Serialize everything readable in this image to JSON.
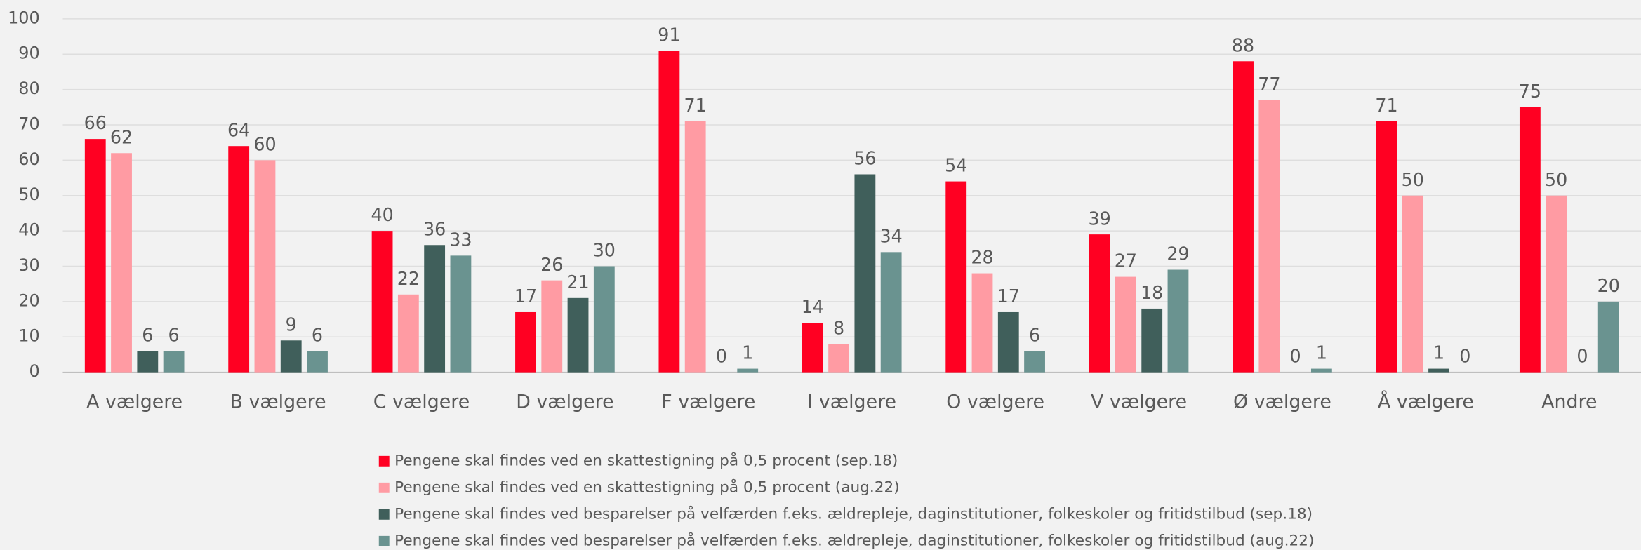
{
  "chart_data": {
    "type": "bar",
    "categories": [
      "A vælgere",
      "B vælgere",
      "C vælgere",
      "D vælgere",
      "F vælgere",
      "I vælgere",
      "O vælgere",
      "V vælgere",
      "Ø vælgere",
      "Å vælgere",
      "Andre"
    ],
    "series": [
      {
        "name": "Pengene skal findes ved en skattestigning på 0,5 procent (sep.18)",
        "color": "#ff0022",
        "values": [
          66,
          64,
          40,
          17,
          91,
          14,
          54,
          39,
          88,
          71,
          75
        ]
      },
      {
        "name": "Pengene skal findes ved en skattestigning på 0,5 procent (aug.22)",
        "color": "#ff9ba3",
        "values": [
          62,
          60,
          22,
          26,
          71,
          8,
          28,
          27,
          77,
          50,
          50
        ]
      },
      {
        "name": "Pengene skal findes ved besparelser på velfærden f.eks. ældrepleje, daginstitutioner, folkeskoler og fritidstilbud (sep.18)",
        "color": "#405f5b",
        "values": [
          6,
          9,
          36,
          21,
          0,
          56,
          17,
          18,
          0,
          1,
          0
        ]
      },
      {
        "name": "Pengene skal findes ved besparelser på velfærden f.eks. ældrepleje, daginstitutioner, folkeskoler og fritidstilbud (aug.22)",
        "color": "#6a9390",
        "values": [
          6,
          6,
          33,
          30,
          1,
          34,
          6,
          29,
          1,
          0,
          20
        ]
      }
    ],
    "ylim": [
      0,
      100
    ],
    "yticks": [
      0,
      10,
      20,
      30,
      40,
      50,
      60,
      70,
      80,
      90,
      100
    ],
    "grid": true,
    "legend": "bottom"
  }
}
